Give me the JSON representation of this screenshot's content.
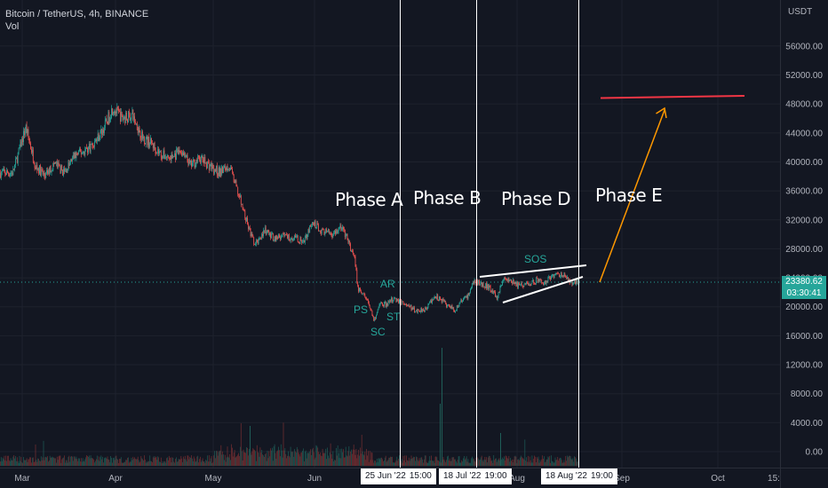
{
  "legend": {
    "symbol": "Bitcoin / TetherUS, 4h, BINANCE",
    "indicator": "Vol"
  },
  "price_axis": {
    "unit": "USDT",
    "ticks": [
      "56000.00",
      "52000.00",
      "48000.00",
      "44000.00",
      "40000.00",
      "36000.00",
      "32000.00",
      "28000.00",
      "24000.00",
      "20000.00",
      "16000.00",
      "12000.00",
      "8000.00",
      "4000.00",
      "0.00"
    ]
  },
  "last_price": {
    "value": "23380.62",
    "countdown": "03:30:41"
  },
  "time_axis": {
    "ticks": [
      "Mar",
      "Apr",
      "May",
      "Jun",
      "Aug",
      "Sep",
      "Oct",
      "15:"
    ],
    "highlights": [
      {
        "date": "25 Jun '22",
        "time": "15:00"
      },
      {
        "date": "18 Jul '22",
        "time": "19:00"
      },
      {
        "date": "18 Aug '22",
        "time": "19:00"
      }
    ]
  },
  "annotations": {
    "phases": [
      "Phase A",
      "Phase B",
      "Phase D",
      "Phase E"
    ],
    "events": [
      "AR",
      "PS",
      "ST",
      "SC",
      "SOS"
    ]
  },
  "colors": {
    "background": "#131722",
    "up": "#26a69a",
    "down": "#ef5350",
    "target_line": "#f23645",
    "arrow": "#ff9800",
    "annotation_line": "#ffffff"
  },
  "chart_data": {
    "type": "candlestick",
    "symbol": "BTC/USDT",
    "interval": "4h",
    "exchange": "BINANCE",
    "ylim": [
      0,
      58000
    ],
    "price_path": [
      [
        "Feb 26",
        38500
      ],
      [
        "Mar 2",
        44800
      ],
      [
        "Mar 5",
        39500
      ],
      [
        "Mar 8",
        38000
      ],
      [
        "Mar 11",
        39800
      ],
      [
        "Mar 14",
        38500
      ],
      [
        "Mar 17",
        40800
      ],
      [
        "Mar 20",
        41500
      ],
      [
        "Mar 23",
        42500
      ],
      [
        "Mar 26",
        44500
      ],
      [
        "Mar 29",
        47500
      ],
      [
        "Apr 1",
        46000
      ],
      [
        "Apr 4",
        46500
      ],
      [
        "Apr 7",
        43500
      ],
      [
        "Apr 10",
        42500
      ],
      [
        "Apr 13",
        41000
      ],
      [
        "Apr 16",
        40500
      ],
      [
        "Apr 19",
        41500
      ],
      [
        "Apr 22",
        39500
      ],
      [
        "Apr 25",
        40500
      ],
      [
        "Apr 28",
        39500
      ],
      [
        "May 1",
        38500
      ],
      [
        "May 4",
        39500
      ],
      [
        "May 7",
        35500
      ],
      [
        "May 10",
        31000
      ],
      [
        "May 12",
        28500
      ],
      [
        "May 15",
        30500
      ],
      [
        "May 18",
        29500
      ],
      [
        "May 21",
        29800
      ],
      [
        "May 24",
        29500
      ],
      [
        "May 27",
        29000
      ],
      [
        "May 30",
        31500
      ],
      [
        "Jun 2",
        30500
      ],
      [
        "Jun 5",
        30000
      ],
      [
        "Jun 8",
        31000
      ],
      [
        "Jun 10",
        29000
      ],
      [
        "Jun 12",
        26500
      ],
      [
        "Jun 13",
        22500
      ],
      [
        "Jun 15",
        21500
      ],
      [
        "Jun 16",
        20800
      ],
      [
        "Jun 18",
        18200
      ],
      [
        "Jun 20",
        20500
      ],
      [
        "Jun 22",
        20300
      ],
      [
        "Jun 24",
        21200
      ],
      [
        "Jun 28",
        20300
      ],
      [
        "Jul 1",
        19400
      ],
      [
        "Jul 4",
        19800
      ],
      [
        "Jul 7",
        21500
      ],
      [
        "Jul 10",
        20500
      ],
      [
        "Jul 13",
        19500
      ],
      [
        "Jul 15",
        20800
      ],
      [
        "Jul 17",
        21500
      ],
      [
        "Jul 19",
        23500
      ],
      [
        "Jul 21",
        23200
      ],
      [
        "Jul 24",
        22600
      ],
      [
        "Jul 26",
        21200
      ],
      [
        "Jul 28",
        23800
      ],
      [
        "Jul 30",
        23600
      ],
      [
        "Aug 2",
        22900
      ],
      [
        "Aug 5",
        23200
      ],
      [
        "Aug 8",
        23800
      ],
      [
        "Aug 10",
        23300
      ],
      [
        "Aug 12",
        24300
      ],
      [
        "Aug 15",
        24500
      ],
      [
        "Aug 17",
        23800
      ],
      [
        "Aug 18",
        23380
      ]
    ],
    "volume_series_name": "Vol",
    "target_level": 48800,
    "last_close": 23380.62
  }
}
